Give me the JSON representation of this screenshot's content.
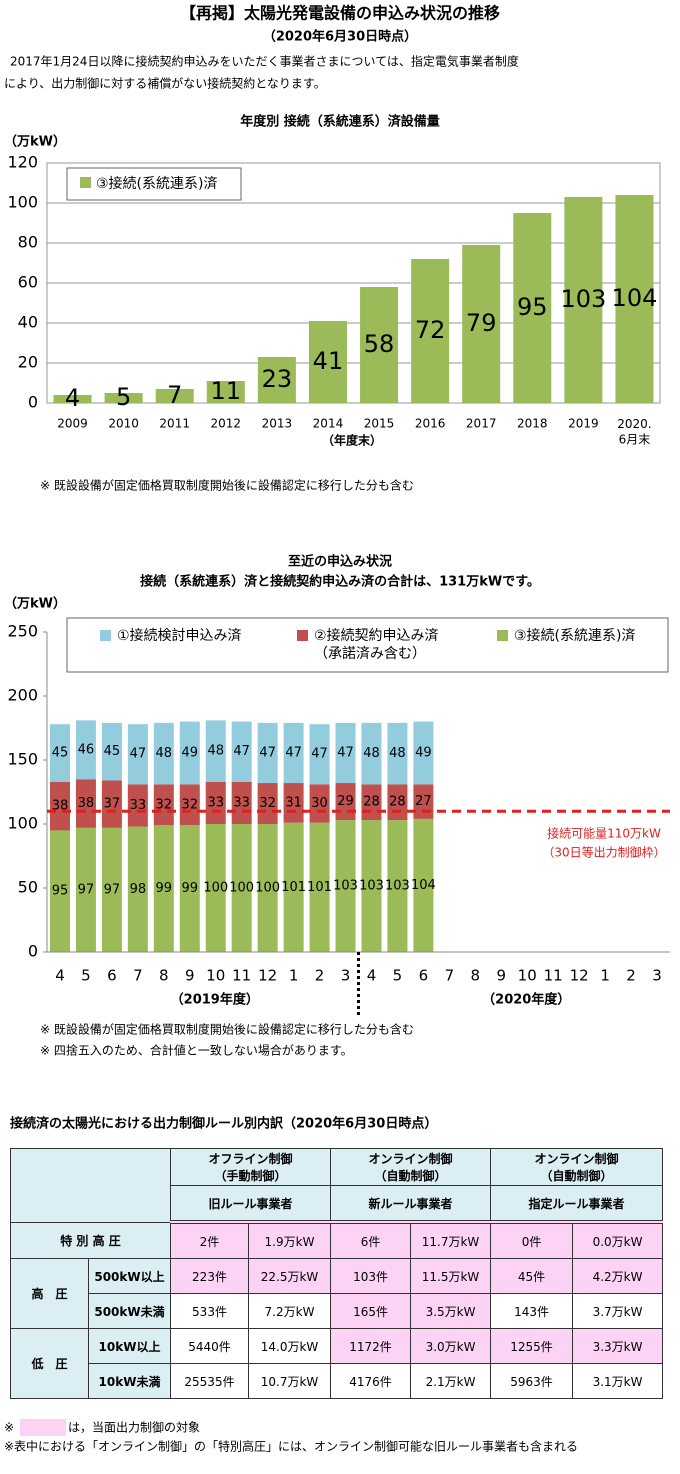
{
  "header": {
    "title": "【再掲】太陽光発電設備の申込み状況の推移",
    "date": "（2020年6月30日時点）",
    "intro": [
      "2017年1月24日以降に接続契約申込みをいただく事業者さまについては、指定電気事業者制度",
      "により、出力制御に対する補償がない接続契約となります。"
    ]
  },
  "chart_data": [
    {
      "type": "bar",
      "title": "年度別  接続（系統連系）済設備量",
      "ylabel": "（万kW）",
      "xlabel": "（年度末）",
      "categories": [
        "2009",
        "2010",
        "2011",
        "2012",
        "2013",
        "2014",
        "2015",
        "2016",
        "2017",
        "2018",
        "2019",
        "2020.\n6月末"
      ],
      "series": [
        {
          "name": "③接続(系統連系)済",
          "color": "#9bbb59",
          "values": [
            4,
            5,
            7,
            11,
            23,
            41,
            58,
            72,
            79,
            95,
            103,
            104
          ]
        }
      ],
      "ylim": [
        0,
        120
      ],
      "yticks": [
        0,
        20,
        40,
        60,
        80,
        100,
        120
      ],
      "grid": true,
      "legend": "top-left",
      "note": "※ 既設設備が固定価格買取制度開始後に設備認定に移行した分も含む"
    },
    {
      "type": "stacked_bar",
      "title": [
        "至近の申込み状況",
        "接続（系統連系）済と接続契約申込み済の合計は、131万kWです。"
      ],
      "ylabel": "（万kW）",
      "categories": [
        "4",
        "5",
        "6",
        "7",
        "8",
        "9",
        "10",
        "11",
        "12",
        "1",
        "2",
        "3",
        "4",
        "5",
        "6",
        "7",
        "8",
        "9",
        "10",
        "11",
        "12",
        "1",
        "2",
        "3"
      ],
      "groups": [
        "（2019年度）",
        "（2020年度）"
      ],
      "series": [
        {
          "name": "③接続(系統連系)済",
          "color": "#9bbb59",
          "values": [
            95,
            97,
            97,
            98,
            99,
            99,
            100,
            100,
            100,
            101,
            101,
            103,
            103,
            103,
            104,
            null,
            null,
            null,
            null,
            null,
            null,
            null,
            null,
            null
          ]
        },
        {
          "name": "②接続契約申込み済\n（承諾済み含む）",
          "color": "#c0504d",
          "values": [
            38,
            38,
            37,
            33,
            32,
            32,
            33,
            33,
            32,
            31,
            30,
            29,
            28,
            28,
            27,
            null,
            null,
            null,
            null,
            null,
            null,
            null,
            null,
            null
          ]
        },
        {
          "name": "①接続検討申込み済",
          "color": "#93cddd",
          "values": [
            45,
            46,
            45,
            47,
            48,
            49,
            48,
            47,
            47,
            47,
            47,
            47,
            48,
            48,
            49,
            null,
            null,
            null,
            null,
            null,
            null,
            null,
            null,
            null
          ]
        }
      ],
      "reference_line": {
        "value": 110,
        "color": "#e02020",
        "label": [
          "接続可能量110万kW",
          "（30日等出力制御枠）"
        ]
      },
      "ylim": [
        0,
        250
      ],
      "yticks": [
        0,
        50,
        100,
        150,
        200,
        250
      ],
      "grid": false,
      "legend": "top",
      "notes": [
        "※ 既設設備が固定価格買取制度開始後に設備認定に移行した分も含む",
        "※ 四捨五入のため、合計値と一致しない場合があります。"
      ]
    }
  ],
  "table": {
    "title": "接続済の太陽光における出力制御ルール別内訳（2020年6月30日時点）",
    "groups": [
      {
        "name": "オフライン制御\n（手動制御）",
        "rule": "旧ルール事業者"
      },
      {
        "name": "オンライン制御\n（自動制御）",
        "rule": "新ルール事業者"
      },
      {
        "name": "オンライン制御\n（自動制御）",
        "rule": "指定ルール事業者"
      }
    ],
    "rows": [
      {
        "label": "特 別 高 圧",
        "cells": [
          "2件",
          "1.9万kW",
          "6件",
          "11.7万kW",
          "0件",
          "0.0万kW"
        ],
        "highlight": [
          true,
          true,
          true
        ]
      },
      {
        "label": "高　圧",
        "subrows": [
          {
            "label": "500kW以上",
            "cells": [
              "223件",
              "22.5万kW",
              "103件",
              "11.5万kW",
              "45件",
              "4.2万kW"
            ],
            "highlight": [
              true,
              true,
              true
            ]
          },
          {
            "label": "500kW未満",
            "cells": [
              "533件",
              "7.2万kW",
              "165件",
              "3.5万kW",
              "143件",
              "3.7万kW"
            ],
            "highlight": [
              false,
              true,
              false
            ]
          }
        ]
      },
      {
        "label": "低　圧",
        "subrows": [
          {
            "label": "10kW以上",
            "cells": [
              "5440件",
              "14.0万kW",
              "1172件",
              "3.0万kW",
              "1255件",
              "3.3万kW"
            ],
            "highlight": [
              false,
              true,
              true
            ]
          },
          {
            "label": "10kW未満",
            "cells": [
              "25535件",
              "10.7万kW",
              "4176件",
              "2.1万kW",
              "5963件",
              "3.1万kW"
            ],
            "highlight": [
              false,
              false,
              false
            ]
          }
        ]
      }
    ],
    "legend_note": {
      "mark": "※",
      "text": "は，当面出力制御の対象"
    },
    "note": "※表中における「オンライン制御」の「特別高圧」には、オンライン制御可能な旧ルール事業者も含まれる"
  }
}
